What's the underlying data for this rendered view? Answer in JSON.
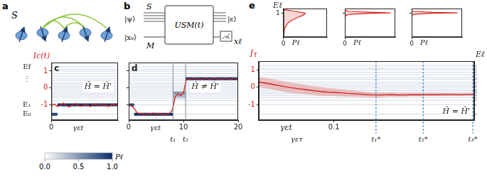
{
  "figure": {
    "diagram_a": {
      "panel_letter": "a",
      "label": "S"
    },
    "diagram_b": {
      "panel_letter": "b",
      "system": "S",
      "system_state": "|ψ⟩",
      "meter": "M",
      "meter_state": "|x₀⟩",
      "unitary": "USM(t)",
      "output_state": "|ε⟩",
      "readout": "xℓ"
    },
    "colorbar": {
      "label": "Pℓ",
      "range": [
        0,
        1
      ],
      "ticks": [
        {
          "value": 0,
          "label": "0.0"
        },
        {
          "value": 0.5,
          "label": "0.5"
        },
        {
          "value": 1,
          "label": "1.0"
        }
      ],
      "colors": [
        "#ffffff",
        "#0b2f6b"
      ]
    }
  },
  "chart_data": [
    {
      "panel_letter": "c",
      "type": "line",
      "x_label": "γεt",
      "y_label": "Ic(t)",
      "annotation": [
        "Ĥ = Ĥ'"
      ],
      "xlim": [
        0,
        11
      ],
      "xticks": [
        0
      ],
      "ylim": [
        -1.9,
        1.5
      ],
      "yticks": [
        -1,
        0,
        1
      ],
      "tick_labels": true,
      "level_labels": [
        {
          "value": -1.55,
          "label": "E₀"
        },
        {
          "value": -1.0,
          "label": "E₁"
        },
        {
          "value": 0.5,
          "label": "⋮"
        },
        {
          "value": 1.25,
          "label": "Ef"
        }
      ],
      "levels": [
        -1.55,
        -1.0,
        -0.75,
        -0.6,
        -0.48,
        -0.38,
        -0.3,
        -0.2,
        -0.1,
        0.0,
        0.1,
        0.2,
        0.3,
        0.45,
        0.55,
        0.7,
        0.85,
        1.0,
        1.1,
        1.25
      ],
      "segments": [
        {
          "y": -1.55,
          "x": [
            0,
            1
          ],
          "p": 0.9
        },
        {
          "y": -1.0,
          "x": [
            1,
            11
          ],
          "p": 1
        }
      ],
      "series": [
        {
          "color": "#d7261e",
          "x": [
            0,
            0.5,
            1,
            1.5,
            2,
            2.5,
            3,
            3.5,
            4,
            4.5,
            5,
            5.5,
            6,
            6.5,
            7,
            7.5,
            8,
            8.5,
            9,
            9.5,
            10,
            10.5,
            11
          ],
          "values": [
            -1.05,
            -0.95,
            -1.1,
            -1.0,
            -0.9,
            -1.05,
            -1.12,
            -0.98,
            -0.92,
            -1.04,
            -1.08,
            -0.96,
            -1.02,
            -1.1,
            -0.94,
            -1.0,
            -1.06,
            -0.93,
            -1.03,
            -1.09,
            -0.97,
            -1.01,
            -1.04
          ]
        }
      ]
    },
    {
      "panel_letter": "d",
      "type": "line",
      "x_label": "γεt",
      "annotation": [
        "Ĥ ≠ Ĥ'"
      ],
      "xlim": [
        0,
        20
      ],
      "xticks": [
        0,
        10,
        20
      ],
      "ylim": [
        -1.9,
        1.5
      ],
      "yticks": [
        -1,
        0,
        1
      ],
      "tick_labels": "x",
      "markers": [
        {
          "value": 8.1,
          "label": "t₁"
        },
        {
          "value": 10.4,
          "label": "t₂"
        }
      ],
      "levels": [
        -1.55,
        -1.0,
        -0.75,
        -0.6,
        -0.48,
        -0.38,
        -0.3,
        -0.2,
        -0.1,
        0.0,
        0.1,
        0.2,
        0.3,
        0.45,
        0.55,
        0.7,
        0.85,
        1.0,
        1.1,
        1.25
      ],
      "segments": [
        {
          "y": -1.0,
          "x": [
            0,
            1
          ],
          "p": 0.9
        },
        {
          "y": -1.55,
          "x": [
            1,
            8.1
          ],
          "p": 1
        },
        {
          "y": -0.3,
          "x": [
            8.1,
            10.4
          ],
          "p": 0.5
        },
        {
          "y": -0.48,
          "x": [
            8.1,
            10.4
          ],
          "p": 0.35
        },
        {
          "y": -0.6,
          "x": [
            8.1,
            10.4
          ],
          "p": 0.15
        },
        {
          "y": 0.55,
          "x": [
            10.4,
            20
          ],
          "p": 1
        }
      ],
      "series": [
        {
          "color": "#d7261e",
          "x": [
            0,
            0.5,
            1,
            1.5,
            2,
            2.5,
            3,
            3.5,
            4,
            4.5,
            5,
            5.5,
            6,
            6.5,
            7,
            7.5,
            8,
            8.5,
            9,
            9.5,
            10,
            10.5,
            11,
            11.5,
            12,
            12.5,
            13,
            13.5,
            14,
            14.5,
            15,
            15.5,
            16,
            16.5,
            17,
            17.5,
            18,
            18.5,
            19,
            19.5,
            20
          ],
          "values": [
            -1.0,
            -1.05,
            -1.2,
            -1.45,
            -1.55,
            -1.5,
            -1.6,
            -1.5,
            -1.55,
            -1.48,
            -1.58,
            -1.52,
            -1.5,
            -1.6,
            -1.54,
            -1.5,
            -1.3,
            -0.5,
            -0.35,
            -0.45,
            -0.3,
            0.45,
            0.55,
            0.5,
            0.6,
            0.52,
            0.55,
            0.48,
            0.58,
            0.55,
            0.5,
            0.6,
            0.53,
            0.56,
            0.5,
            0.57,
            0.54,
            0.5,
            0.58,
            0.55,
            0.52
          ]
        }
      ]
    },
    {
      "panel_letter": "e",
      "type": "line",
      "log": "x",
      "x_label": "γετ",
      "y_label": "Īτ",
      "y2_label": "Eℓ",
      "annotation": [
        "Ĥ = Ĥ'",
        "γεt"
      ],
      "xlim": [
        0.002,
        150
      ],
      "xticks": [
        0.1
      ],
      "ylim": [
        -1.9,
        1.5
      ],
      "yticks": [
        -1,
        0,
        1
      ],
      "tick_labels": true,
      "markers": [
        {
          "value": 0.9,
          "label": "t₁*"
        },
        {
          "value": 10.5,
          "label": "t₂*"
        },
        {
          "value": 140,
          "label": "t₃*"
        }
      ],
      "levels": [
        -1.55,
        -1.0,
        -0.75,
        -0.6,
        -0.48,
        -0.38,
        -0.3,
        -0.2,
        -0.1,
        0.0,
        0.1,
        0.2,
        0.3,
        0.45,
        0.55,
        0.7,
        0.85,
        1.0,
        1.1,
        1.25
      ],
      "series": [
        {
          "color": "#d7261e",
          "x": [
            0.002,
            0.003,
            0.005,
            0.007,
            0.01,
            0.015,
            0.02,
            0.03,
            0.05,
            0.07,
            0.1,
            0.15,
            0.2,
            0.3,
            0.5,
            0.7,
            1,
            1.5,
            2,
            3,
            5,
            7,
            10,
            15,
            20,
            30,
            50,
            70,
            100,
            150
          ],
          "values": [
            0.3,
            0.22,
            0.12,
            0.05,
            -0.02,
            -0.08,
            -0.12,
            -0.18,
            -0.25,
            -0.28,
            -0.3,
            -0.33,
            -0.36,
            -0.38,
            -0.42,
            -0.44,
            -0.45,
            -0.44,
            -0.43,
            -0.45,
            -0.44,
            -0.43,
            -0.44,
            -0.42,
            -0.43,
            -0.42,
            -0.42,
            -0.43,
            -0.42,
            -0.42
          ],
          "upper": [
            0.6,
            0.52,
            0.42,
            0.35,
            0.28,
            0.2,
            0.15,
            0.08,
            0.0,
            -0.05,
            -0.08,
            -0.12,
            -0.16,
            -0.2,
            -0.26,
            -0.29,
            -0.31,
            -0.31,
            -0.31,
            -0.33,
            -0.33,
            -0.33,
            -0.34,
            -0.33,
            -0.34,
            -0.33,
            -0.34,
            -0.35,
            -0.35,
            -0.35
          ],
          "lower": [
            0.0,
            -0.08,
            -0.18,
            -0.25,
            -0.32,
            -0.36,
            -0.39,
            -0.44,
            -0.5,
            -0.51,
            -0.52,
            -0.54,
            -0.56,
            -0.56,
            -0.58,
            -0.59,
            -0.59,
            -0.57,
            -0.55,
            -0.57,
            -0.55,
            -0.53,
            -0.54,
            -0.51,
            -0.52,
            -0.51,
            -0.5,
            -0.51,
            -0.49,
            -0.49
          ]
        }
      ]
    },
    {
      "type": "line",
      "x_label": "Pℓ",
      "y_label": "Eℓ",
      "xlim": [
        0,
        1.1
      ],
      "xticks": [
        0
      ],
      "ylim": [
        -1.5,
        1.5
      ],
      "yticks": [
        1
      ],
      "tick_labels": true,
      "series": [
        {
          "color": "#d7261e",
          "x": [
            0,
            0.01,
            0.02,
            0.03,
            0.05,
            0.08,
            0.12,
            0.18,
            0.27,
            0.38,
            0.5,
            0.55,
            0.3,
            0
          ],
          "values": [
            -1.2,
            -1,
            -0.8,
            -0.6,
            -0.4,
            -0.2,
            0,
            0.2,
            0.4,
            0.6,
            0.8,
            1.0,
            1.2,
            1.4
          ]
        }
      ]
    },
    {
      "type": "line",
      "x_label": "Pℓ",
      "xlim": [
        0,
        1.1
      ],
      "xticks": [
        0
      ],
      "ylim": [
        -1.5,
        1.5
      ],
      "yticks": [
        1
      ],
      "tick_labels": "x",
      "series": [
        {
          "color": "#d7261e",
          "x": [
            0,
            0.03,
            0.12,
            0.6,
            1.0,
            0.6,
            0.1,
            0
          ],
          "values": [
            0.6,
            0.8,
            0.9,
            1.0,
            1.05,
            1.1,
            1.2,
            1.3
          ]
        }
      ]
    },
    {
      "type": "line",
      "x_label": "Pℓ",
      "xlim": [
        0,
        1.1
      ],
      "xticks": [
        0
      ],
      "ylim": [
        -1.5,
        1.5
      ],
      "yticks": [
        1
      ],
      "tick_labels": "x",
      "series": [
        {
          "color": "#d7261e",
          "x": [
            0,
            0.01,
            0.05,
            0.45,
            1.0,
            0.45,
            0.04,
            0
          ],
          "values": [
            0.6,
            0.8,
            0.9,
            1.0,
            1.05,
            1.1,
            1.2,
            1.3
          ]
        }
      ]
    }
  ]
}
